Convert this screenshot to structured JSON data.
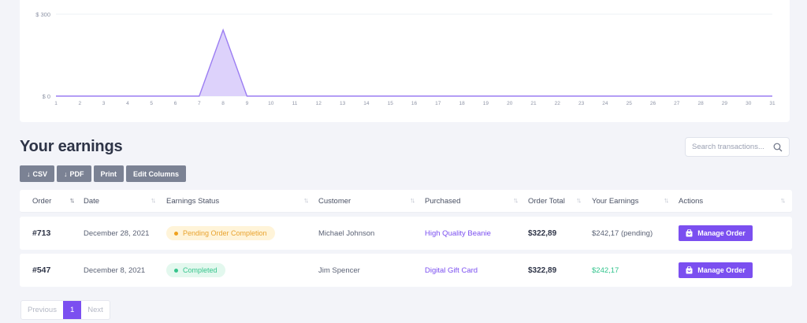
{
  "chart_data": {
    "type": "area",
    "x": [
      1,
      2,
      3,
      4,
      5,
      6,
      7,
      8,
      9,
      10,
      11,
      12,
      13,
      14,
      15,
      16,
      17,
      18,
      19,
      20,
      21,
      22,
      23,
      24,
      25,
      26,
      27,
      28,
      29,
      30,
      31
    ],
    "values": [
      0,
      0,
      0,
      0,
      0,
      0,
      0,
      242.17,
      0,
      0,
      0,
      0,
      0,
      0,
      0,
      0,
      0,
      0,
      0,
      0,
      0,
      0,
      0,
      0,
      0,
      0,
      0,
      0,
      0,
      0,
      0
    ],
    "y_ticks": [
      "$ 0",
      "$ 300"
    ],
    "ylim": [
      0,
      300
    ],
    "xlim": [
      1,
      31
    ],
    "grid": "horizontal",
    "colors": {
      "line": "#9b7df2",
      "fill": "#ddd2fb"
    }
  },
  "page": {
    "title": "Your earnings"
  },
  "search": {
    "placeholder": "Search transactions..."
  },
  "toolbar": {
    "csv_label": "CSV",
    "pdf_label": "PDF",
    "print_label": "Print",
    "edit_columns_label": "Edit Columns"
  },
  "table": {
    "columns": [
      "Order",
      "Date",
      "Earnings Status",
      "Customer",
      "Purchased",
      "Order Total",
      "Your Earnings",
      "Actions"
    ],
    "rows": [
      {
        "order": "#713",
        "date": "December 28, 2021",
        "status": "Pending Order Completion",
        "customer": "Michael Johnson",
        "purchased": "High Quality Beanie",
        "total": "$322,89",
        "earnings": "$242,17 (pending)",
        "action": "Manage Order"
      },
      {
        "order": "#547",
        "date": "December 8, 2021",
        "status": "Completed",
        "customer": "Jim Spencer",
        "purchased": "Digital Gift Card",
        "total": "$322,89",
        "earnings": "$242,17",
        "action": "Manage Order"
      }
    ]
  },
  "pagination": {
    "previous": "Previous",
    "current": "1",
    "next": "Next"
  },
  "colors": {
    "accent": "#7b4ff0",
    "pending": "#efa11e",
    "completed": "#36c48c"
  }
}
